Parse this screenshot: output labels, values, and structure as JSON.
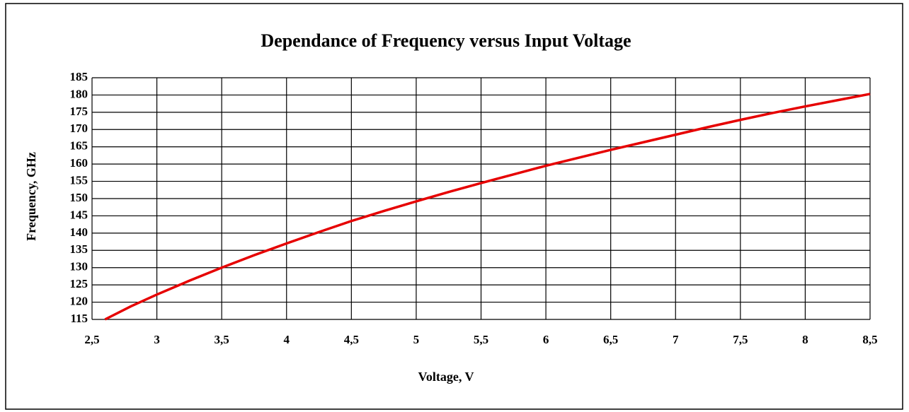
{
  "chart_data": {
    "type": "line",
    "title": "Dependance of Frequency versus Input Voltage",
    "x_label": "Voltage, V",
    "y_label": "Frequency, GHz",
    "x": [
      2.6,
      2.8,
      3,
      3.25,
      3.5,
      3.75,
      4,
      4.25,
      4.5,
      4.75,
      5,
      5.25,
      5.5,
      5.75,
      6,
      6.25,
      6.5,
      6.75,
      7,
      7.25,
      7.5,
      7.75,
      8,
      8.25,
      8.5
    ],
    "series": [
      {
        "name": "Frequency",
        "color": "#e60000",
        "values": [
          115,
          118.8,
          122.2,
          126.2,
          130,
          133.6,
          137,
          140.3,
          143.5,
          146.4,
          149.2,
          151.9,
          154.5,
          157,
          159.5,
          161.8,
          164.1,
          166.3,
          168.5,
          170.7,
          172.8,
          174.8,
          176.7,
          178.5,
          180.3
        ]
      }
    ],
    "xlim": [
      2.5,
      8.5
    ],
    "xticks": [
      {
        "value": 2.5,
        "label": "2,5"
      },
      3,
      {
        "value": 3.5,
        "label": "3,5"
      },
      4,
      {
        "value": 4.5,
        "label": "4,5"
      },
      5,
      {
        "value": 5.5,
        "label": "5,5"
      },
      6,
      {
        "value": 6.5,
        "label": "6,5"
      },
      7,
      {
        "value": 7.5,
        "label": "7,5"
      },
      8,
      {
        "value": 8.5,
        "label": "8,5"
      }
    ],
    "ylim": [
      115,
      185
    ],
    "yticks": [
      115,
      120,
      125,
      130,
      135,
      140,
      145,
      150,
      155,
      160,
      165,
      170,
      175,
      180,
      185
    ],
    "grid": true
  }
}
